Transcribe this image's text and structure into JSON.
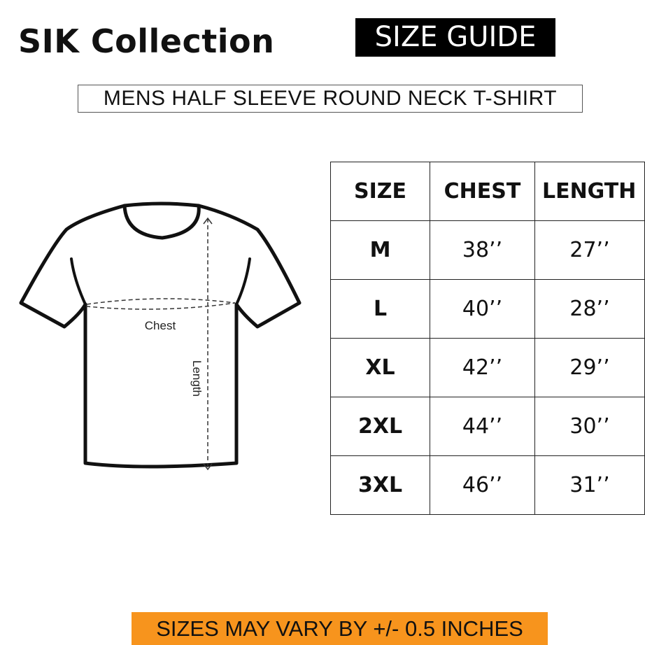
{
  "brand": "SIK Collection",
  "guide_label": "SIZE GUIDE",
  "subtitle": "MENS HALF SLEEVE ROUND NECK T-SHIRT",
  "diagram": {
    "chest_label": "Chest",
    "length_label": "Length"
  },
  "table": {
    "headers": [
      "SIZE",
      "CHEST",
      "LENGTH"
    ],
    "rows": [
      [
        "M",
        "38’’",
        "27’’"
      ],
      [
        "L",
        "40’’",
        "28’’"
      ],
      [
        "XL",
        "42’’",
        "29’’"
      ],
      [
        "2XL",
        "44’’",
        "30’’"
      ],
      [
        "3XL",
        "46’’",
        "31’’"
      ]
    ]
  },
  "note": "SIZES MAY VARY BY +/- 0.5 INCHES",
  "colors": {
    "banner": "#f7941d",
    "guide_bg": "#000000"
  }
}
